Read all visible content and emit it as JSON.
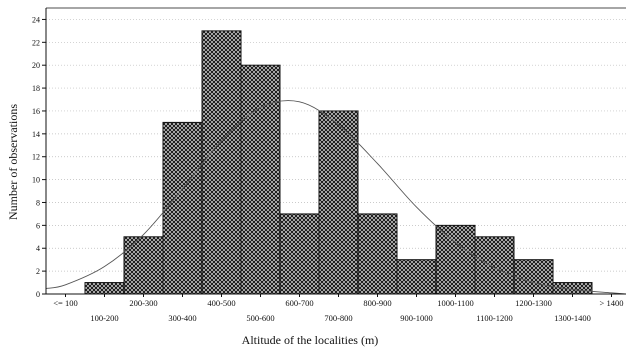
{
  "chart_data": {
    "type": "bar",
    "title": "",
    "xlabel": "Altitude of the localities (m)",
    "ylabel": "Number of observations",
    "categories": [
      "<= 100",
      "100-200",
      "200-300",
      "300-400",
      "400-500",
      "500-600",
      "600-700",
      "700-800",
      "800-900",
      "900-1000",
      "1000-1100",
      "1100-1200",
      "1200-1300",
      "1300-1400",
      "> 1400"
    ],
    "values": [
      0,
      1,
      5,
      15,
      23,
      20,
      7,
      16,
      7,
      3,
      6,
      5,
      3,
      1,
      0
    ],
    "ylim": [
      0,
      25
    ],
    "yticks": [
      0,
      2,
      4,
      6,
      8,
      10,
      12,
      14,
      16,
      18,
      20,
      22,
      24
    ],
    "grid": true,
    "fitted_curve": {
      "type": "normal",
      "approx_peak_category": "600-700",
      "approx_peak_value": 16.8,
      "points": [
        {
          "x": "<= 100",
          "y": 0.8
        },
        {
          "x": "100-200",
          "y": 2.4
        },
        {
          "x": "200-300",
          "y": 5.2
        },
        {
          "x": "300-400",
          "y": 9.2
        },
        {
          "x": "400-500",
          "y": 13.4
        },
        {
          "x": "500-600",
          "y": 16.3
        },
        {
          "x": "600-700",
          "y": 16.8
        },
        {
          "x": "700-800",
          "y": 14.8
        },
        {
          "x": "800-900",
          "y": 11.4
        },
        {
          "x": "900-1000",
          "y": 7.6
        },
        {
          "x": "1000-1100",
          "y": 4.5
        },
        {
          "x": "1100-1200",
          "y": 2.3
        },
        {
          "x": "1200-1300",
          "y": 1.0
        },
        {
          "x": "1300-1400",
          "y": 0.4
        },
        {
          "x": "> 1400",
          "y": 0.1
        }
      ]
    },
    "colors": {
      "bar_fill_pattern": "crosshatch",
      "bar_stroke": "#111111",
      "curve": "#555555",
      "grid": "#bbbbbb"
    }
  }
}
